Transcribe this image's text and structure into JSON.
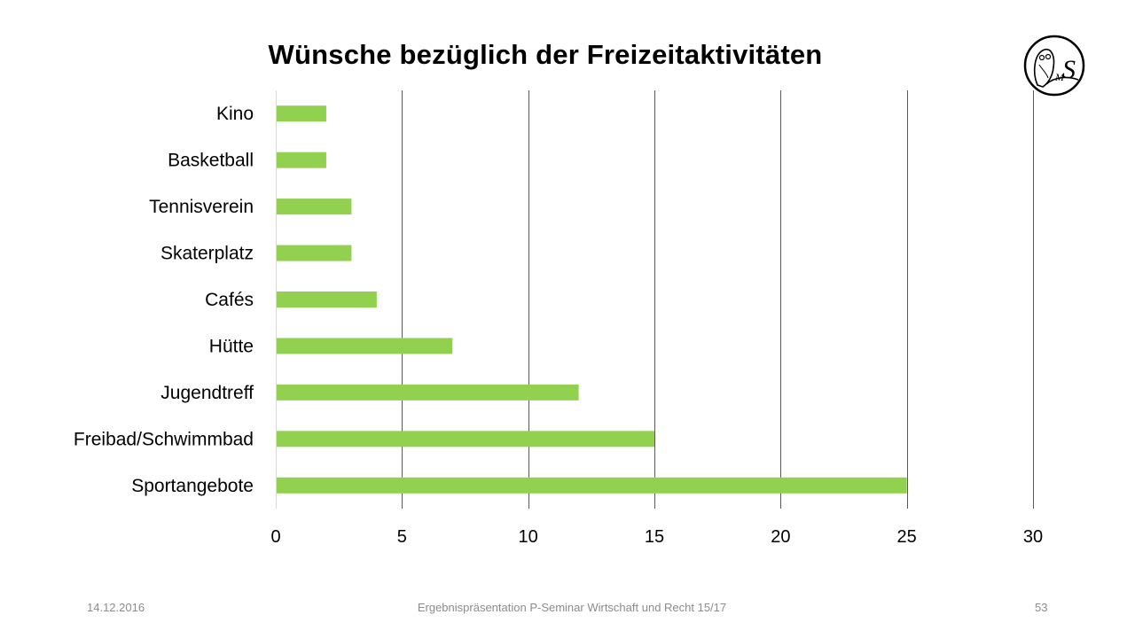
{
  "slide": {
    "title": "Wünsche bezüglich der Freizeitaktivitäten",
    "logo_icon": "owl-ms-school-logo",
    "footer": {
      "date": "14.12.2016",
      "center": "Ergebnispräsentation P-Seminar Wirtschaft und Recht 15/17",
      "page": "53"
    }
  },
  "chart_data": {
    "type": "bar",
    "orientation": "horizontal",
    "title": "Wünsche bezüglich der Freizeitaktivitäten",
    "xlabel": "",
    "ylabel": "",
    "categories": [
      "Kino",
      "Basketball",
      "Tennisverein",
      "Skaterplatz",
      "Cafés",
      "Hütte",
      "Jugendtreff",
      "Freibad/Schwimmbad",
      "Sportangebote"
    ],
    "values": [
      2,
      2,
      3,
      3,
      4,
      7,
      12,
      15,
      25
    ],
    "xlim": [
      0,
      30
    ],
    "xticks": [
      0,
      5,
      10,
      15,
      20,
      25,
      30
    ],
    "grid": "vertical",
    "legend": "none",
    "bar_color": "#92d050",
    "grid_color": "#595959"
  }
}
